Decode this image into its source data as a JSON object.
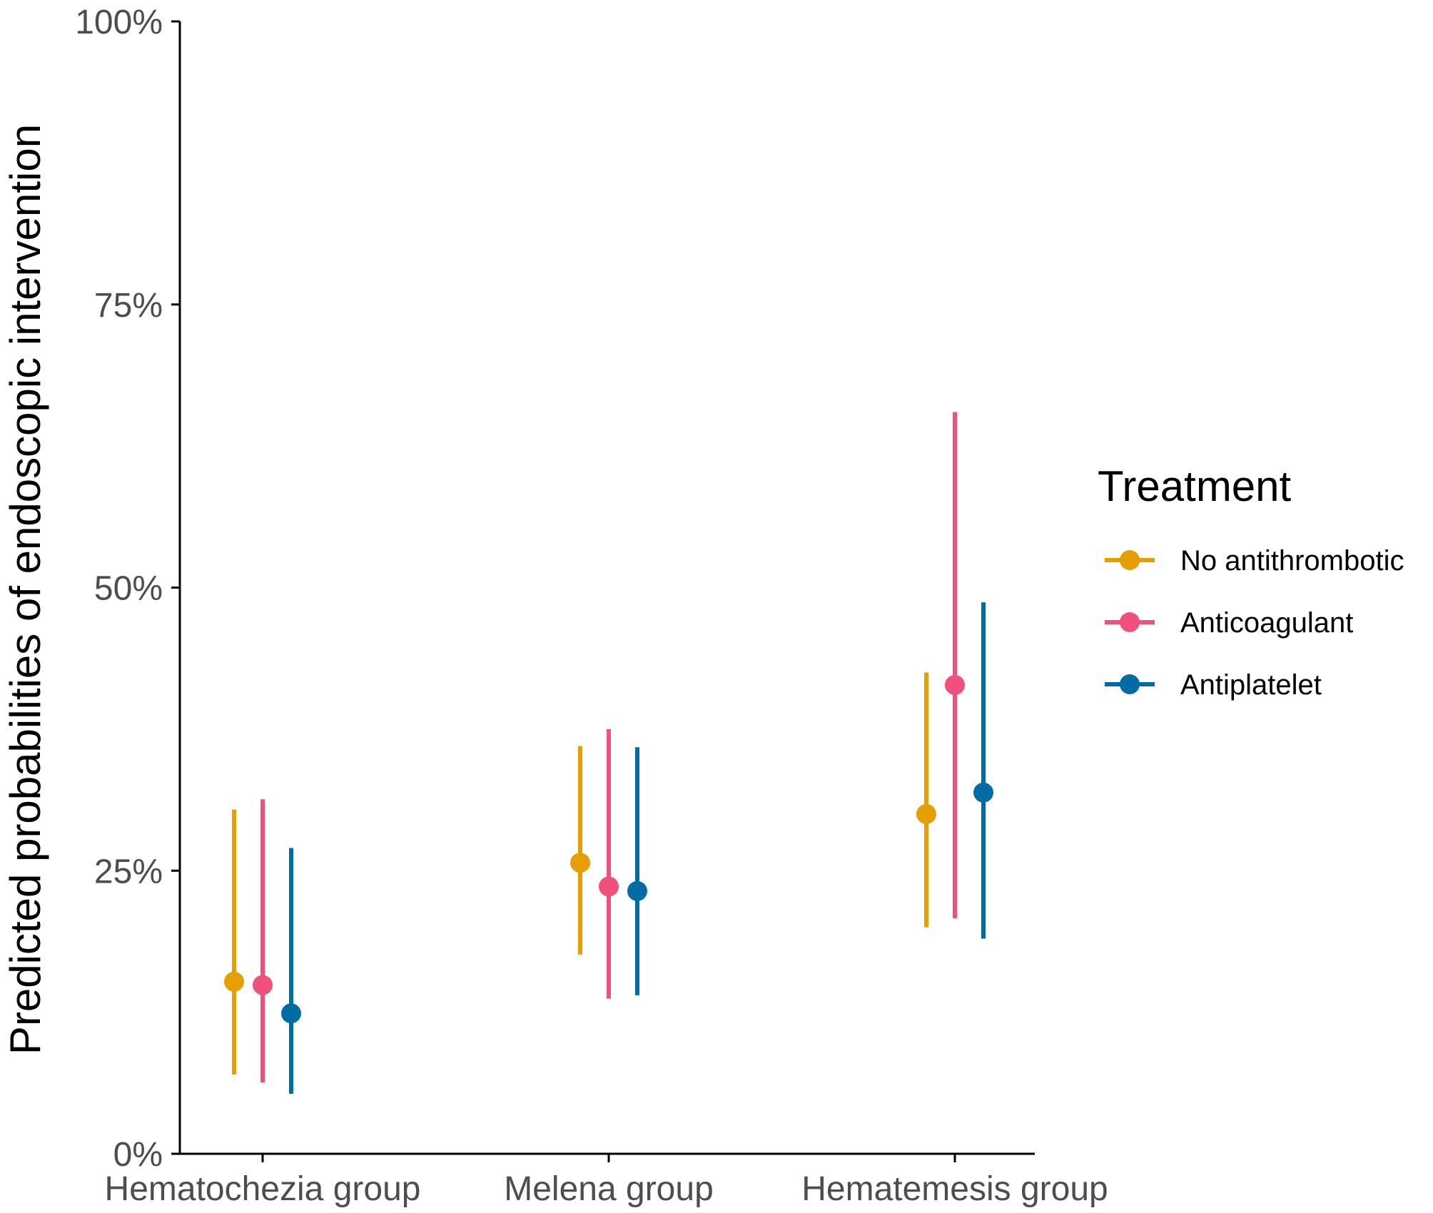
{
  "chart_data": {
    "type": "errorbar",
    "title": "",
    "xlabel": "",
    "ylabel": "Predicted probabilities of endoscopic intervention",
    "categories": [
      "Hematochezia group",
      "Melena group",
      "Hematemesis group"
    ],
    "y_ticks": [
      "0%",
      "25%",
      "50%",
      "75%",
      "100%"
    ],
    "ylim": [
      0,
      1
    ],
    "grid": false,
    "legend": {
      "title": "Treatment",
      "position": "right"
    },
    "series": [
      {
        "name": "No antithrombotic",
        "color": "#E69F00",
        "values": [
          0.152,
          0.257,
          0.3
        ],
        "lower": [
          0.07,
          0.176,
          0.2
        ],
        "upper": [
          0.304,
          0.36,
          0.425
        ]
      },
      {
        "name": "Anticoagulant",
        "color": "#F0507C",
        "values": [
          0.149,
          0.236,
          0.414
        ],
        "lower": [
          0.063,
          0.137,
          0.208
        ],
        "upper": [
          0.313,
          0.375,
          0.655
        ]
      },
      {
        "name": "Antiplatelet",
        "color": "#006BA4",
        "values": [
          0.124,
          0.232,
          0.319
        ],
        "lower": [
          0.053,
          0.14,
          0.19
        ],
        "upper": [
          0.27,
          0.359,
          0.487
        ]
      }
    ]
  }
}
